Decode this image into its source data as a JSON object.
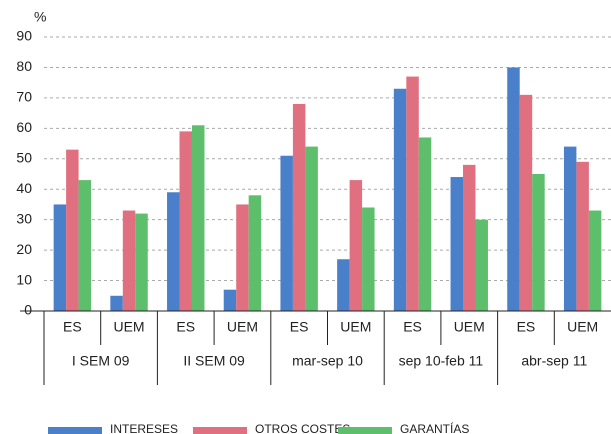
{
  "chart_data": {
    "type": "bar",
    "y_label": "%",
    "categories": [
      "ES",
      "UEM",
      "ES",
      "UEM",
      "ES",
      "UEM",
      "ES",
      "UEM",
      "ES",
      "UEM"
    ],
    "groups": [
      "I SEM 09",
      "II SEM 09",
      "mar-sep 10",
      "sep 10-feb 11",
      "abr-sep 11"
    ],
    "series": [
      {
        "name": "INTERESES",
        "color": "#4a7fc9",
        "values": [
          35,
          5,
          39,
          7,
          51,
          17,
          73,
          44,
          80,
          54
        ]
      },
      {
        "name": "OTROS COSTES",
        "color": "#e0707f",
        "values": [
          53,
          33,
          59,
          35,
          68,
          43,
          77,
          48,
          71,
          49
        ]
      },
      {
        "name": "GARANTÍAS",
        "color": "#5dbe6b",
        "values": [
          43,
          32,
          61,
          38,
          54,
          34,
          57,
          30,
          45,
          33
        ]
      }
    ],
    "ylim": [
      0,
      90
    ],
    "yticks": [
      0,
      10,
      20,
      30,
      40,
      50,
      60,
      70,
      80,
      90
    ],
    "grid": true
  }
}
